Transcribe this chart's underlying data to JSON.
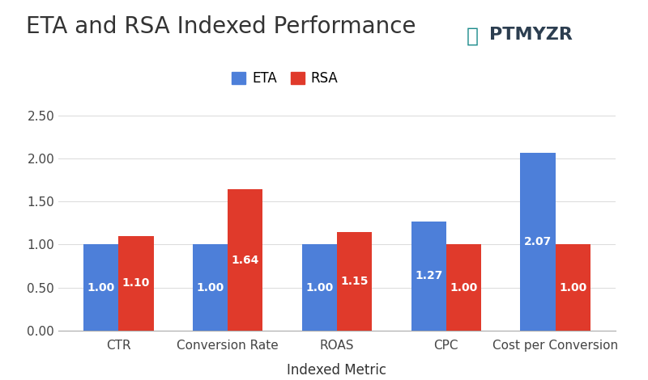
{
  "title": "ETA and RSA Indexed Performance",
  "xlabel": "Indexed Metric",
  "categories": [
    "CTR",
    "Conversion Rate",
    "ROAS",
    "CPC",
    "Cost per Conversion"
  ],
  "eta_values": [
    1.0,
    1.0,
    1.0,
    1.27,
    2.07
  ],
  "rsa_values": [
    1.1,
    1.64,
    1.15,
    1.0,
    1.0
  ],
  "eta_color": "#4D7FD9",
  "rsa_color": "#E03A2B",
  "ylim": [
    0,
    2.65
  ],
  "yticks": [
    0.0,
    0.5,
    1.0,
    1.5,
    2.0,
    2.5
  ],
  "bar_width": 0.32,
  "background_color": "#ffffff",
  "grid_color": "#dddddd",
  "title_fontsize": 20,
  "xlabel_fontsize": 12,
  "tick_fontsize": 11,
  "bar_label_fontsize": 10,
  "legend_labels": [
    "ETA",
    "RSA"
  ],
  "logo_text": "PTMYZR",
  "logo_color": "#2c3e50",
  "logo_o_color": "#1a6b7c"
}
